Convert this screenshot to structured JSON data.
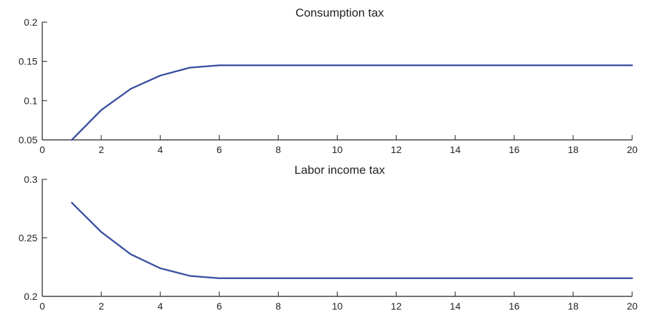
{
  "colors": {
    "series": "#3a4fa0",
    "axis": "#1a1a1a",
    "text": "#222222",
    "background": "#ffffff"
  },
  "chart_data": [
    {
      "type": "line",
      "title": "Consumption tax",
      "xlabel": "",
      "ylabel": "",
      "xlim": [
        0,
        20
      ],
      "ylim": [
        0.05,
        0.2
      ],
      "xticks": [
        "0",
        "2",
        "4",
        "6",
        "8",
        "10",
        "12",
        "14",
        "16",
        "18",
        "20"
      ],
      "yticks": [
        "0.05",
        "0.1",
        "0.15",
        "0.2"
      ],
      "grid": false,
      "series": [
        {
          "x": [
            1,
            2,
            3,
            4,
            5,
            6,
            7,
            8,
            9,
            10,
            11,
            12,
            13,
            14,
            15,
            16,
            17,
            18,
            19,
            20
          ],
          "values": [
            0.05,
            0.088,
            0.115,
            0.132,
            0.142,
            0.145,
            0.145,
            0.145,
            0.145,
            0.145,
            0.145,
            0.145,
            0.145,
            0.145,
            0.145,
            0.145,
            0.145,
            0.145,
            0.145,
            0.145
          ]
        }
      ]
    },
    {
      "type": "line",
      "title": "Labor income tax",
      "xlabel": "",
      "ylabel": "",
      "xlim": [
        0,
        20
      ],
      "ylim": [
        0.2,
        0.3
      ],
      "xticks": [
        "0",
        "2",
        "4",
        "6",
        "8",
        "10",
        "12",
        "14",
        "16",
        "18",
        "20"
      ],
      "yticks": [
        "0.2",
        "0.25",
        "0.3"
      ],
      "grid": false,
      "series": [
        {
          "x": [
            1,
            2,
            3,
            4,
            5,
            6,
            7,
            8,
            9,
            10,
            11,
            12,
            13,
            14,
            15,
            16,
            17,
            18,
            19,
            20
          ],
          "values": [
            0.28,
            0.255,
            0.236,
            0.224,
            0.2175,
            0.2155,
            0.2155,
            0.2155,
            0.2155,
            0.2155,
            0.2155,
            0.2155,
            0.2155,
            0.2155,
            0.2155,
            0.2155,
            0.2155,
            0.2155,
            0.2155,
            0.2155
          ]
        }
      ]
    }
  ]
}
